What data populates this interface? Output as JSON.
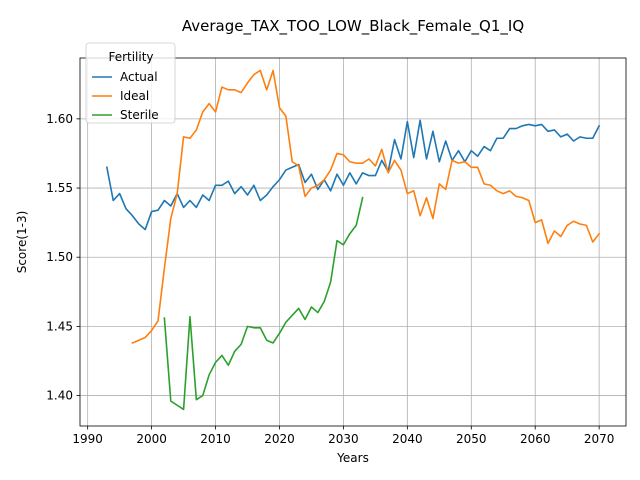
{
  "chart_data": {
    "type": "line",
    "title": "Average_TAX_TOO_LOW_Black_Female_Q1_IQ",
    "xlabel": "Years",
    "ylabel": "Score(1-3)",
    "xlim": [
      1988.8,
      2074.2
    ],
    "ylim": [
      1.378,
      1.644
    ],
    "xticks": [
      1990,
      2000,
      2010,
      2020,
      2030,
      2040,
      2050,
      2060,
      2070
    ],
    "yticks": [
      1.4,
      1.45,
      1.5,
      1.55,
      1.6
    ],
    "ytick_labels": [
      "1.40",
      "1.45",
      "1.50",
      "1.55",
      "1.60"
    ],
    "grid": true,
    "legend": {
      "title": "Fertility",
      "placement": "upper-left"
    },
    "series": [
      {
        "name": "Actual",
        "color": "#1f77b4",
        "x": [
          1993,
          1994,
          1995,
          1996,
          1997,
          1998,
          1999,
          2000,
          2001,
          2002,
          2003,
          2004,
          2005,
          2006,
          2007,
          2008,
          2009,
          2010,
          2011,
          2012,
          2013,
          2014,
          2015,
          2016,
          2017,
          2018,
          2019,
          2020,
          2021,
          2022,
          2023,
          2024,
          2025,
          2026,
          2027,
          2028,
          2029,
          2030,
          2031,
          2032,
          2033,
          2034,
          2035,
          2036,
          2037,
          2038,
          2039,
          2040,
          2041,
          2042,
          2043,
          2044,
          2045,
          2046,
          2047,
          2048,
          2049,
          2050,
          2051,
          2052,
          2053,
          2054,
          2055,
          2056,
          2057,
          2058,
          2059,
          2060,
          2061,
          2062,
          2063,
          2064,
          2065,
          2066,
          2067,
          2068,
          2069,
          2070
        ],
        "values": [
          1.565,
          1.541,
          1.546,
          1.535,
          1.53,
          1.524,
          1.52,
          1.533,
          1.534,
          1.541,
          1.537,
          1.546,
          1.536,
          1.541,
          1.536,
          1.545,
          1.541,
          1.552,
          1.552,
          1.555,
          1.546,
          1.551,
          1.545,
          1.552,
          1.541,
          1.545,
          1.551,
          1.556,
          1.563,
          1.565,
          1.567,
          1.554,
          1.56,
          1.549,
          1.556,
          1.548,
          1.56,
          1.552,
          1.561,
          1.553,
          1.561,
          1.559,
          1.559,
          1.57,
          1.562,
          1.585,
          1.571,
          1.598,
          1.572,
          1.599,
          1.571,
          1.591,
          1.569,
          1.584,
          1.57,
          1.577,
          1.569,
          1.577,
          1.573,
          1.58,
          1.577,
          1.586,
          1.586,
          1.593,
          1.593,
          1.595,
          1.596,
          1.595,
          1.596,
          1.591,
          1.592,
          1.587,
          1.589,
          1.584,
          1.587,
          1.586,
          1.586,
          1.595
        ]
      },
      {
        "name": "Ideal",
        "color": "#ff7f0e",
        "x": [
          1997,
          1998,
          1999,
          2000,
          2001,
          2002,
          2003,
          2004,
          2005,
          2006,
          2007,
          2008,
          2009,
          2010,
          2011,
          2012,
          2013,
          2014,
          2015,
          2016,
          2017,
          2018,
          2019,
          2020,
          2021,
          2022,
          2023,
          2024,
          2025,
          2026,
          2027,
          2028,
          2029,
          2030,
          2031,
          2032,
          2033,
          2034,
          2035,
          2036,
          2037,
          2038,
          2039,
          2040,
          2041,
          2042,
          2043,
          2044,
          2045,
          2046,
          2047,
          2048,
          2049,
          2050,
          2051,
          2052,
          2053,
          2054,
          2055,
          2056,
          2057,
          2058,
          2059,
          2060,
          2061,
          2062,
          2063,
          2064,
          2065,
          2066,
          2067,
          2068,
          2069,
          2070
        ],
        "values": [
          1.438,
          1.44,
          1.442,
          1.447,
          1.454,
          1.492,
          1.528,
          1.546,
          1.587,
          1.586,
          1.592,
          1.605,
          1.611,
          1.605,
          1.623,
          1.621,
          1.621,
          1.619,
          1.626,
          1.632,
          1.635,
          1.621,
          1.635,
          1.608,
          1.602,
          1.569,
          1.566,
          1.544,
          1.55,
          1.552,
          1.556,
          1.563,
          1.575,
          1.574,
          1.569,
          1.568,
          1.568,
          1.571,
          1.566,
          1.578,
          1.561,
          1.57,
          1.563,
          1.546,
          1.548,
          1.53,
          1.543,
          1.528,
          1.553,
          1.549,
          1.57,
          1.568,
          1.569,
          1.565,
          1.565,
          1.553,
          1.552,
          1.548,
          1.546,
          1.548,
          1.544,
          1.543,
          1.541,
          1.525,
          1.527,
          1.51,
          1.519,
          1.515,
          1.523,
          1.526,
          1.524,
          1.523,
          1.511,
          1.517
        ]
      },
      {
        "name": "Sterile",
        "color": "#2ca02c",
        "x": [
          2002,
          2003,
          2004,
          2005,
          2006,
          2007,
          2008,
          2009,
          2010,
          2011,
          2012,
          2013,
          2014,
          2015,
          2016,
          2017,
          2018,
          2019,
          2020,
          2021,
          2022,
          2023,
          2024,
          2025,
          2026,
          2027,
          2028,
          2029,
          2030,
          2031,
          2032,
          2033
        ],
        "values": [
          1.456,
          1.396,
          1.393,
          1.39,
          1.457,
          1.397,
          1.4,
          1.415,
          1.424,
          1.429,
          1.422,
          1.432,
          1.437,
          1.45,
          1.449,
          1.449,
          1.44,
          1.438,
          1.445,
          1.453,
          1.458,
          1.463,
          1.455,
          1.464,
          1.46,
          1.468,
          1.482,
          1.512,
          1.509,
          1.517,
          1.523,
          1.543
        ]
      }
    ]
  }
}
